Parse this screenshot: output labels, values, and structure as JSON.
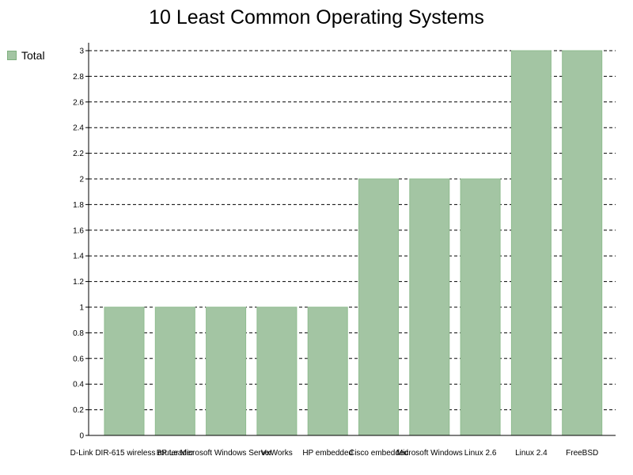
{
  "chart_data": {
    "type": "bar",
    "title": "10 Least Common Operating Systems",
    "xlabel": "",
    "ylabel": "",
    "ylim": [
      0,
      3
    ],
    "yticks": [
      "0",
      "0.2",
      "0.4",
      "0.6",
      "0.8",
      "1",
      "1.2",
      "1.4",
      "1.6",
      "1.8",
      "2",
      "2.2",
      "2.4",
      "2.6",
      "2.8",
      "3"
    ],
    "grid": "horizontal-dashed",
    "legend_position": "top-left",
    "categories": [
      "D-Link DIR-615 wireless router",
      "BP Leader",
      "Microsoft Windows Server",
      "VxWorks",
      "HP embedded",
      "Cisco embedded",
      "Microsoft Windows",
      "Linux 2.6",
      "Linux 2.4",
      "FreeBSD"
    ],
    "series": [
      {
        "name": "Total",
        "color": "#a3c5a3",
        "values": [
          1,
          1,
          1,
          1,
          1,
          2,
          2,
          2,
          3,
          3
        ]
      }
    ]
  }
}
